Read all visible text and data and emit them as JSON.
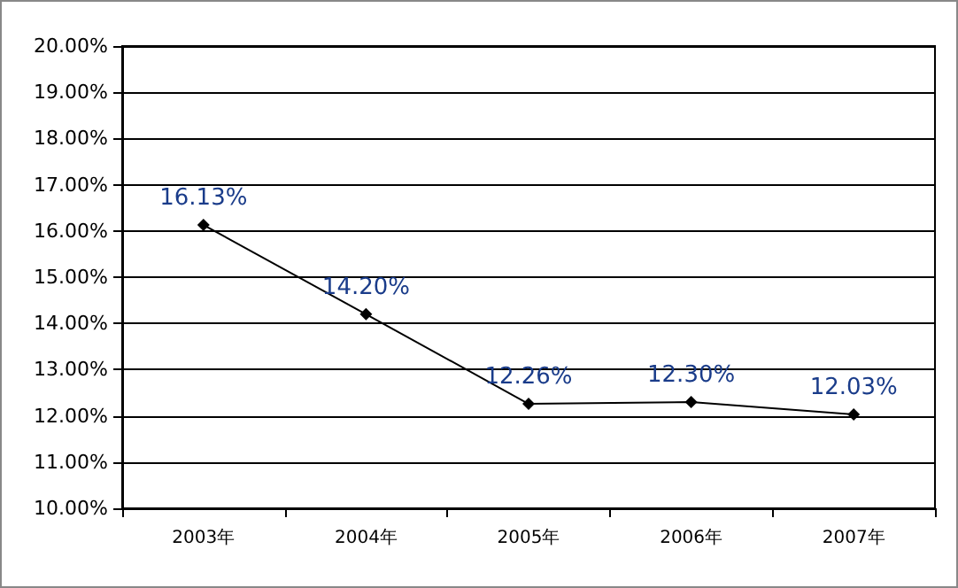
{
  "chart_data": {
    "type": "line",
    "categories": [
      "2003年",
      "2004年",
      "2005年",
      "2006年",
      "2007年"
    ],
    "series": [
      {
        "color": "#000000",
        "values": [
          16.13,
          14.2,
          12.26,
          12.3,
          12.03
        ],
        "value_labels": [
          "16.13%",
          "14.20%",
          "12.26%",
          "12.30%",
          "12.03%"
        ]
      }
    ],
    "ylim": [
      10,
      20
    ],
    "yticks": [
      {
        "value": 10,
        "label": "10.00%"
      },
      {
        "value": 11,
        "label": "11.00%"
      },
      {
        "value": 12,
        "label": "12.00%"
      },
      {
        "value": 13,
        "label": "13.00%"
      },
      {
        "value": 14,
        "label": "14.00%"
      },
      {
        "value": 15,
        "label": "15.00%"
      },
      {
        "value": 16,
        "label": "16.00%"
      },
      {
        "value": 17,
        "label": "17.00%"
      },
      {
        "value": 18,
        "label": "18.00%"
      },
      {
        "value": 19,
        "label": "19.00%"
      },
      {
        "value": 20,
        "label": "20.00%"
      }
    ],
    "grid": "y",
    "marker": "diamond",
    "line_style": "solid"
  }
}
